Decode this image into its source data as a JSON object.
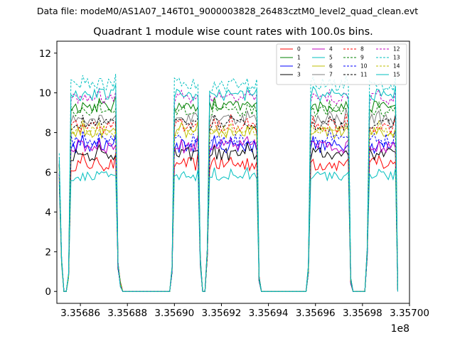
{
  "chart_data": {
    "type": "line",
    "suptitle": "Data file: modeM0/AS1A07_146T01_9000003828_26483cztM0_level2_quad_clean.evt",
    "title": "Quadrant 1 module wise count rates with 100.0s bins.",
    "xlabel": "",
    "ylabel": "",
    "x_offset_label": "1e8",
    "xlim": [
      335685000,
      335700000
    ],
    "ylim": [
      -0.6,
      12.6
    ],
    "x_ticks": [
      335686000,
      335688000,
      335690000,
      335692000,
      335694000,
      335696000,
      335698000,
      335700000
    ],
    "x_tick_labels": [
      "3.35686",
      "3.35688",
      "3.35690",
      "3.35692",
      "3.35694",
      "3.35696",
      "3.35698",
      "3.35700"
    ],
    "y_ticks": [
      0,
      2,
      4,
      6,
      8,
      10,
      12
    ],
    "y_tick_labels": [
      "0",
      "2",
      "4",
      "6",
      "8",
      "10",
      "12"
    ],
    "grid": false,
    "legend_position": "top-right",
    "time_axis": {
      "start": 335685100,
      "step": 100,
      "count": 145,
      "active_windows": [
        [
          335685600,
          335687500
        ],
        [
          335690000,
          335691000
        ],
        [
          335691500,
          335693500
        ],
        [
          335695800,
          335697400
        ],
        [
          335698300,
          335699400
        ]
      ],
      "ramps": [
        [
          335685100,
          5.6
        ],
        [
          335685200,
          1.4
        ],
        [
          335685500,
          0.7
        ],
        [
          335687600,
          1.2
        ],
        [
          335687700,
          0.3
        ],
        [
          335689900,
          1.0
        ],
        [
          335691100,
          1.4
        ],
        [
          335691400,
          1.8
        ],
        [
          335693600,
          0.6
        ],
        [
          335695700,
          1.0
        ],
        [
          335697500,
          0.5
        ],
        [
          335698200,
          1.8
        ]
      ]
    },
    "series": [
      {
        "name": "0",
        "color": "#ff0000",
        "dashed": false,
        "level": 6.4,
        "jitter": 0.35
      },
      {
        "name": "1",
        "color": "#008000",
        "dashed": false,
        "level": 9.3,
        "jitter": 0.3
      },
      {
        "name": "2",
        "color": "#0000ff",
        "dashed": false,
        "level": 7.3,
        "jitter": 0.35
      },
      {
        "name": "3",
        "color": "#000000",
        "dashed": false,
        "level": 6.9,
        "jitter": 0.35
      },
      {
        "name": "4",
        "color": "#bf00bf",
        "dashed": false,
        "level": 7.3,
        "jitter": 0.35
      },
      {
        "name": "5",
        "color": "#00bfbf",
        "dashed": false,
        "level": 5.8,
        "jitter": 0.25
      },
      {
        "name": "6",
        "color": "#bfbf00",
        "dashed": false,
        "level": 8.0,
        "jitter": 0.3
      },
      {
        "name": "7",
        "color": "#808080",
        "dashed": false,
        "level": 8.7,
        "jitter": 0.3
      },
      {
        "name": "8",
        "color": "#ff0000",
        "dashed": true,
        "level": 8.3,
        "jitter": 0.35
      },
      {
        "name": "9",
        "color": "#008000",
        "dashed": true,
        "level": 9.1,
        "jitter": 0.3
      },
      {
        "name": "10",
        "color": "#0000ff",
        "dashed": true,
        "level": 7.6,
        "jitter": 0.35
      },
      {
        "name": "11",
        "color": "#000000",
        "dashed": true,
        "level": 8.4,
        "jitter": 0.3
      },
      {
        "name": "12",
        "color": "#bf00bf",
        "dashed": true,
        "level": 9.7,
        "jitter": 0.3
      },
      {
        "name": "13",
        "color": "#00bfbf",
        "dashed": true,
        "level": 10.4,
        "jitter": 0.35
      },
      {
        "name": "14",
        "color": "#bfbf00",
        "dashed": true,
        "level": 8.1,
        "jitter": 0.3
      },
      {
        "name": "15",
        "color": "#00bfbf",
        "dashed": false,
        "level": 9.9,
        "jitter": 0.3
      }
    ]
  }
}
